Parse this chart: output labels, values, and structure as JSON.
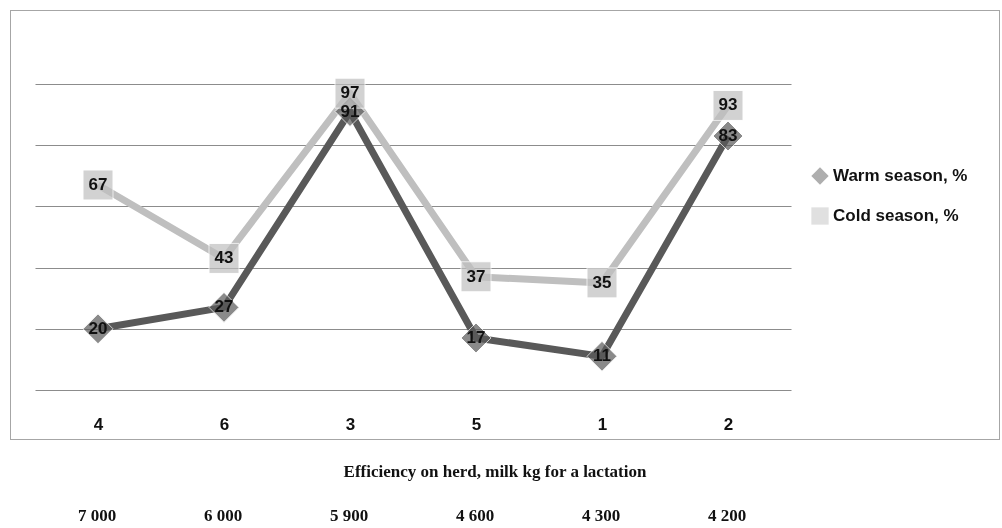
{
  "chart_data": {
    "type": "line",
    "categories": [
      "4",
      "6",
      "3",
      "5",
      "1",
      "2"
    ],
    "series": [
      {
        "name": "Warm season, %",
        "color": "#595959",
        "marker": "diamond",
        "values": [
          20,
          27,
          91,
          17,
          11,
          83
        ]
      },
      {
        "name": "Cold season, %",
        "color": "#bfbfbf",
        "marker": "square",
        "values": [
          67,
          43,
          97,
          37,
          35,
          93
        ]
      }
    ],
    "ylim": [
      0,
      100
    ],
    "yticks": [
      {
        "value": 0,
        "label": null
      },
      {
        "value": 20,
        "label": null
      },
      {
        "value": 40,
        "label": null
      },
      {
        "value": 60,
        "label": null
      },
      {
        "value": 80,
        "label": null
      },
      {
        "value": 100,
        "label": null
      }
    ],
    "tick_labels": "x",
    "grid": "y",
    "legend": "right",
    "line_style": "solid",
    "data_labels": true,
    "xlabel": "Efficiency on herd, milk kg for a lactation",
    "annotations": [
      "7 000",
      "6 000",
      "5 900",
      "4 600",
      "4 300",
      "4 200"
    ]
  }
}
